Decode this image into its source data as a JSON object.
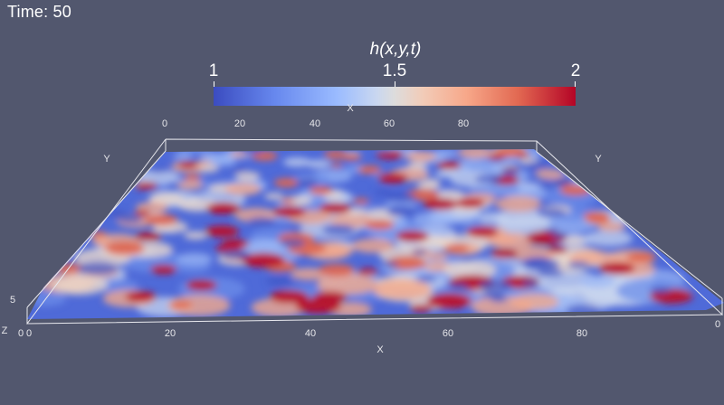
{
  "time_label": "Time: 50",
  "colorbar": {
    "title": "h(x,y,t)",
    "min_label": "1",
    "mid_label": "1.5",
    "max_label": "2",
    "colormap": "coolwarm",
    "color_low": "#3b4cc0",
    "color_mid": "#dddcdc",
    "color_high": "#b40426"
  },
  "axes": {
    "x_title": "X",
    "y_title": "Y",
    "z_title": "Z",
    "x_ticks_back": [
      "0",
      "20",
      "40",
      "60",
      "80"
    ],
    "x_ticks_front": [
      "0",
      "20",
      "40",
      "60",
      "80",
      "0"
    ],
    "z_tick": "5",
    "bottom_left_label": "0"
  }
}
